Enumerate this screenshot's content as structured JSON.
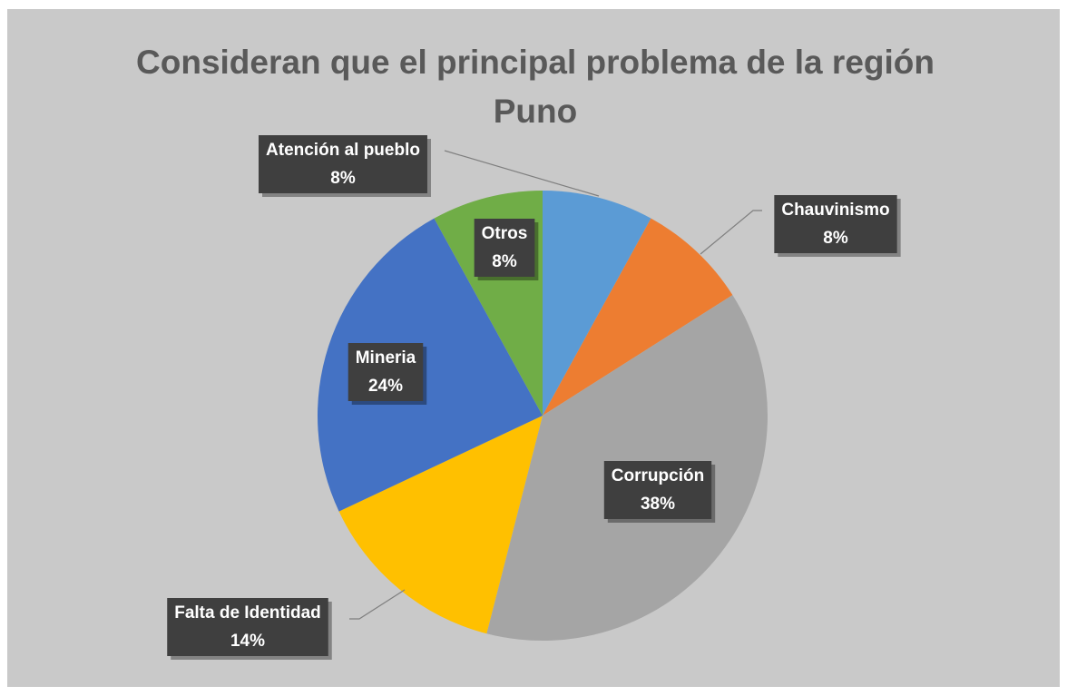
{
  "chart_data": {
    "type": "pie",
    "title": "Consideran que el principal problema de la región Puno",
    "categories": [
      "Atención al pueblo",
      "Chauvinismo",
      "Corrupción",
      "Falta de Identidad",
      "Mineria",
      "Otros"
    ],
    "values": [
      8,
      8,
      38,
      14,
      24,
      8
    ],
    "value_labels": [
      "8%",
      "8%",
      "38%",
      "14%",
      "24%",
      "8%"
    ],
    "colors": [
      "#5b9bd5",
      "#ed7d31",
      "#a5a5a5",
      "#ffc000",
      "#4472c4",
      "#70ad47"
    ]
  }
}
